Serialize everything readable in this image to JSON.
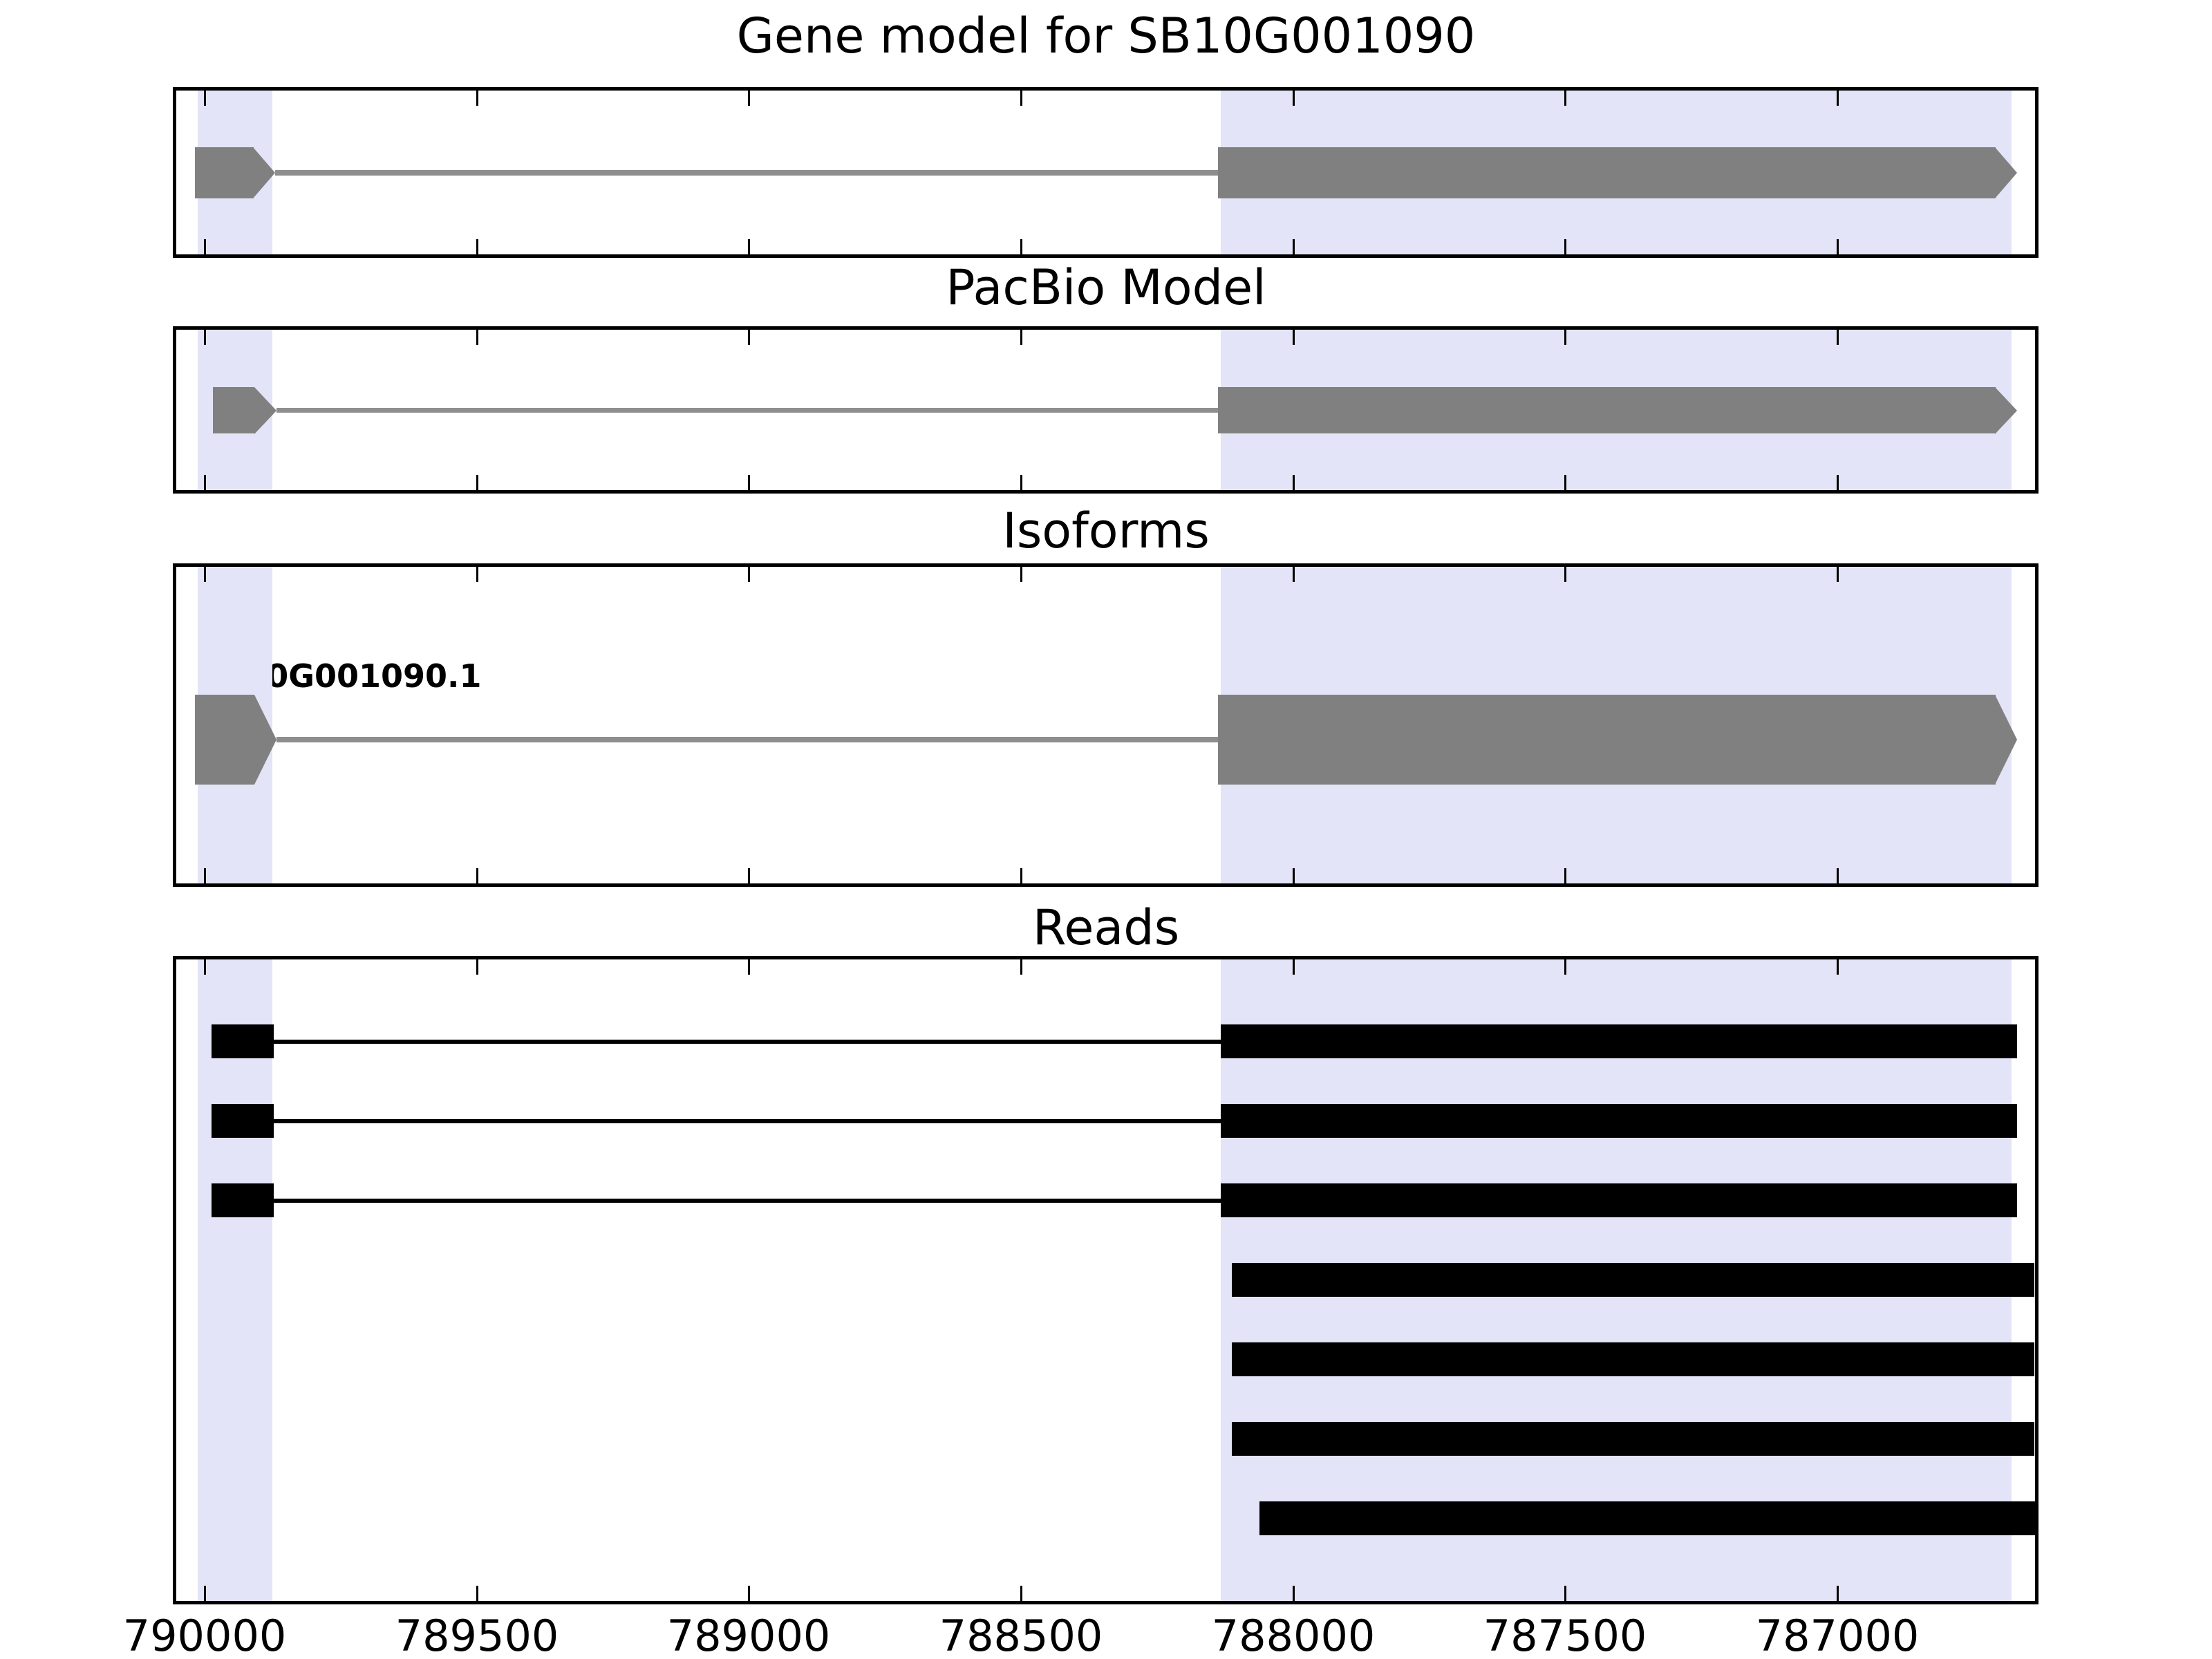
{
  "figure": {
    "panels": [
      {
        "id": "gene-model",
        "title": "Gene model for SB10G001090"
      },
      {
        "id": "pacbio-model",
        "title": "PacBio Model"
      },
      {
        "id": "isoforms",
        "title": "Isoforms"
      },
      {
        "id": "reads",
        "title": "Reads"
      }
    ]
  },
  "colors": {
    "background": "#FFFFFF",
    "highlight": "#E4E4F8",
    "model_fill": "#808080",
    "model_line": "#8E8E8E",
    "read_fill": "#000000",
    "axis": "#000000"
  },
  "isoform_label": "SB10G001090.1",
  "chart_data": {
    "type": "genomic-gene-model-tracks",
    "title": "Gene model for SB10G001090",
    "x_axis": {
      "unit": "genomic position (bp)",
      "reversed": true,
      "min": 786636,
      "max": 790052,
      "ticks": [
        790000,
        789500,
        789000,
        788500,
        788000,
        787500,
        787000
      ],
      "tick_labels": [
        "790000",
        "789500",
        "789000",
        "788500",
        "788000",
        "787500",
        "787000"
      ]
    },
    "highlight_regions": [
      {
        "start": 789876,
        "end": 790013
      },
      {
        "start": 786680,
        "end": 788133
      }
    ],
    "tracks": [
      {
        "name": "Gene model for SB10G001090",
        "style": "gray-arrow",
        "features": [
          {
            "kind": "exon",
            "start": 789870,
            "end": 790018,
            "arrow": true
          },
          {
            "kind": "intron",
            "start": 788138,
            "end": 789870
          },
          {
            "kind": "exon",
            "start": 786669,
            "end": 788138,
            "arrow": true
          }
        ]
      },
      {
        "name": "PacBio Model",
        "style": "gray-arrow",
        "features": [
          {
            "kind": "exon",
            "start": 789868,
            "end": 789985,
            "arrow": true
          },
          {
            "kind": "intron",
            "start": 788138,
            "end": 789868
          },
          {
            "kind": "exon",
            "start": 786669,
            "end": 788138,
            "arrow": true
          }
        ]
      },
      {
        "name": "Isoforms",
        "style": "gray-arrow",
        "isoforms": [
          {
            "label": "SB10G001090.1",
            "features": [
              {
                "kind": "exon",
                "start": 789868,
                "end": 790018,
                "arrow": true
              },
              {
                "kind": "intron",
                "start": 788138,
                "end": 789868
              },
              {
                "kind": "exon",
                "start": 786669,
                "end": 788138,
                "arrow": true
              }
            ]
          }
        ]
      },
      {
        "name": "Reads",
        "style": "black",
        "reads": [
          {
            "segments": [
              {
                "kind": "exon",
                "start": 789873,
                "end": 789987
              },
              {
                "kind": "intron",
                "start": 788133,
                "end": 789873
              },
              {
                "kind": "exon",
                "start": 786670,
                "end": 788133
              }
            ]
          },
          {
            "segments": [
              {
                "kind": "exon",
                "start": 789873,
                "end": 789987
              },
              {
                "kind": "intron",
                "start": 788133,
                "end": 789873
              },
              {
                "kind": "exon",
                "start": 786670,
                "end": 788133
              }
            ]
          },
          {
            "segments": [
              {
                "kind": "exon",
                "start": 789873,
                "end": 789987
              },
              {
                "kind": "intron",
                "start": 788133,
                "end": 789873
              },
              {
                "kind": "exon",
                "start": 786670,
                "end": 788133
              }
            ]
          },
          {
            "segments": [
              {
                "kind": "exon",
                "start": 786637,
                "end": 788112
              }
            ]
          },
          {
            "segments": [
              {
                "kind": "exon",
                "start": 786637,
                "end": 788112
              }
            ]
          },
          {
            "segments": [
              {
                "kind": "exon",
                "start": 786637,
                "end": 788112
              }
            ]
          },
          {
            "segments": [
              {
                "kind": "exon",
                "start": 786637,
                "end": 788062
              }
            ]
          }
        ]
      }
    ]
  }
}
